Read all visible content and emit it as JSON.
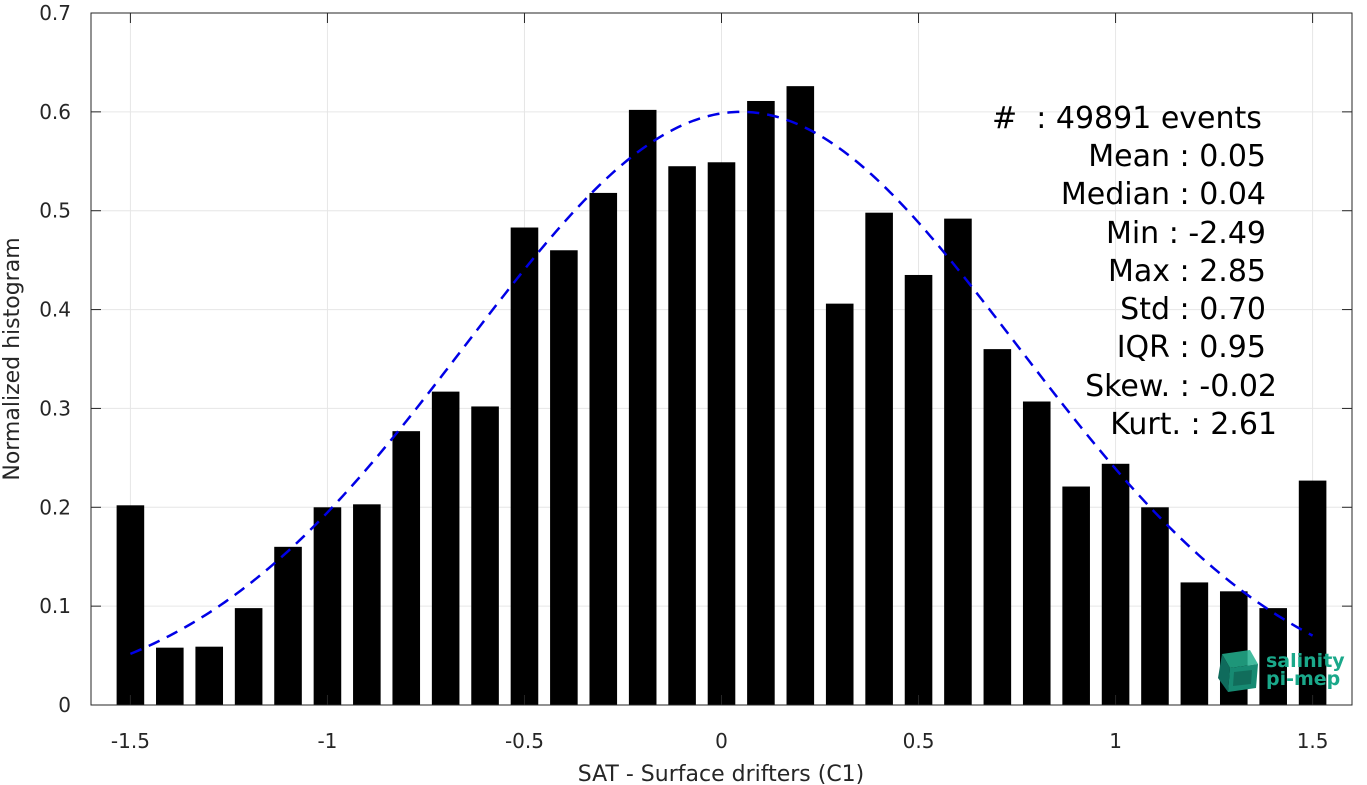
{
  "chart_data": {
    "type": "bar",
    "xlabel": "SAT - Surface drifters (C1)",
    "ylabel": "Normalized histogram",
    "xlim": [
      -1.6,
      1.6
    ],
    "ylim": [
      0,
      0.7
    ],
    "xticks": [
      -1.5,
      -1,
      -0.5,
      0,
      0.5,
      1,
      1.5
    ],
    "xtick_labels": [
      "-1.5",
      "-1",
      "-0.5",
      "0",
      "0.5",
      "1",
      "1.5"
    ],
    "yticks": [
      0,
      0.1,
      0.2,
      0.3,
      0.4,
      0.5,
      0.6,
      0.7
    ],
    "ytick_labels": [
      "0",
      "0.1",
      "0.2",
      "0.3",
      "0.4",
      "0.5",
      "0.6",
      "0.7"
    ],
    "grid": true,
    "bar_color": "#000000",
    "bars": {
      "x": [
        -1.5,
        -1.4,
        -1.3,
        -1.2,
        -1.1,
        -1.0,
        -0.9,
        -0.8,
        -0.7,
        -0.6,
        -0.5,
        -0.4,
        -0.3,
        -0.2,
        -0.1,
        0.0,
        0.1,
        0.2,
        0.3,
        0.4,
        0.5,
        0.6,
        0.7,
        0.8,
        0.9,
        1.0,
        1.1,
        1.2,
        1.3,
        1.4,
        1.5
      ],
      "values": [
        0.202,
        0.058,
        0.059,
        0.098,
        0.16,
        0.2,
        0.203,
        0.277,
        0.317,
        0.302,
        0.483,
        0.46,
        0.518,
        0.602,
        0.545,
        0.549,
        0.611,
        0.626,
        0.406,
        0.498,
        0.435,
        0.492,
        0.36,
        0.307,
        0.221,
        0.244,
        0.2,
        0.124,
        0.115,
        0.098,
        0.227
      ]
    },
    "fit_curve": {
      "style": "dashed",
      "color": "#0000e6",
      "distribution": "gaussian",
      "mean": 0.05,
      "std": 0.7,
      "peak": 0.6,
      "x_range": [
        -1.5,
        1.5
      ]
    }
  },
  "stats": [
    {
      "label": "#  : 49891 events"
    },
    {
      "label": "Mean : 0.05"
    },
    {
      "label": "Median : 0.04"
    },
    {
      "label": "Min : -2.49"
    },
    {
      "label": "Max : 2.85"
    },
    {
      "label": "Std : 0.70"
    },
    {
      "label": "IQR : 0.95"
    },
    {
      "label": "Skew. : -0.02"
    },
    {
      "label": "Kurt. : 2.61"
    }
  ],
  "logo": {
    "line1": "salinity",
    "line2": "pi-mep",
    "color": "#1aa88a"
  }
}
